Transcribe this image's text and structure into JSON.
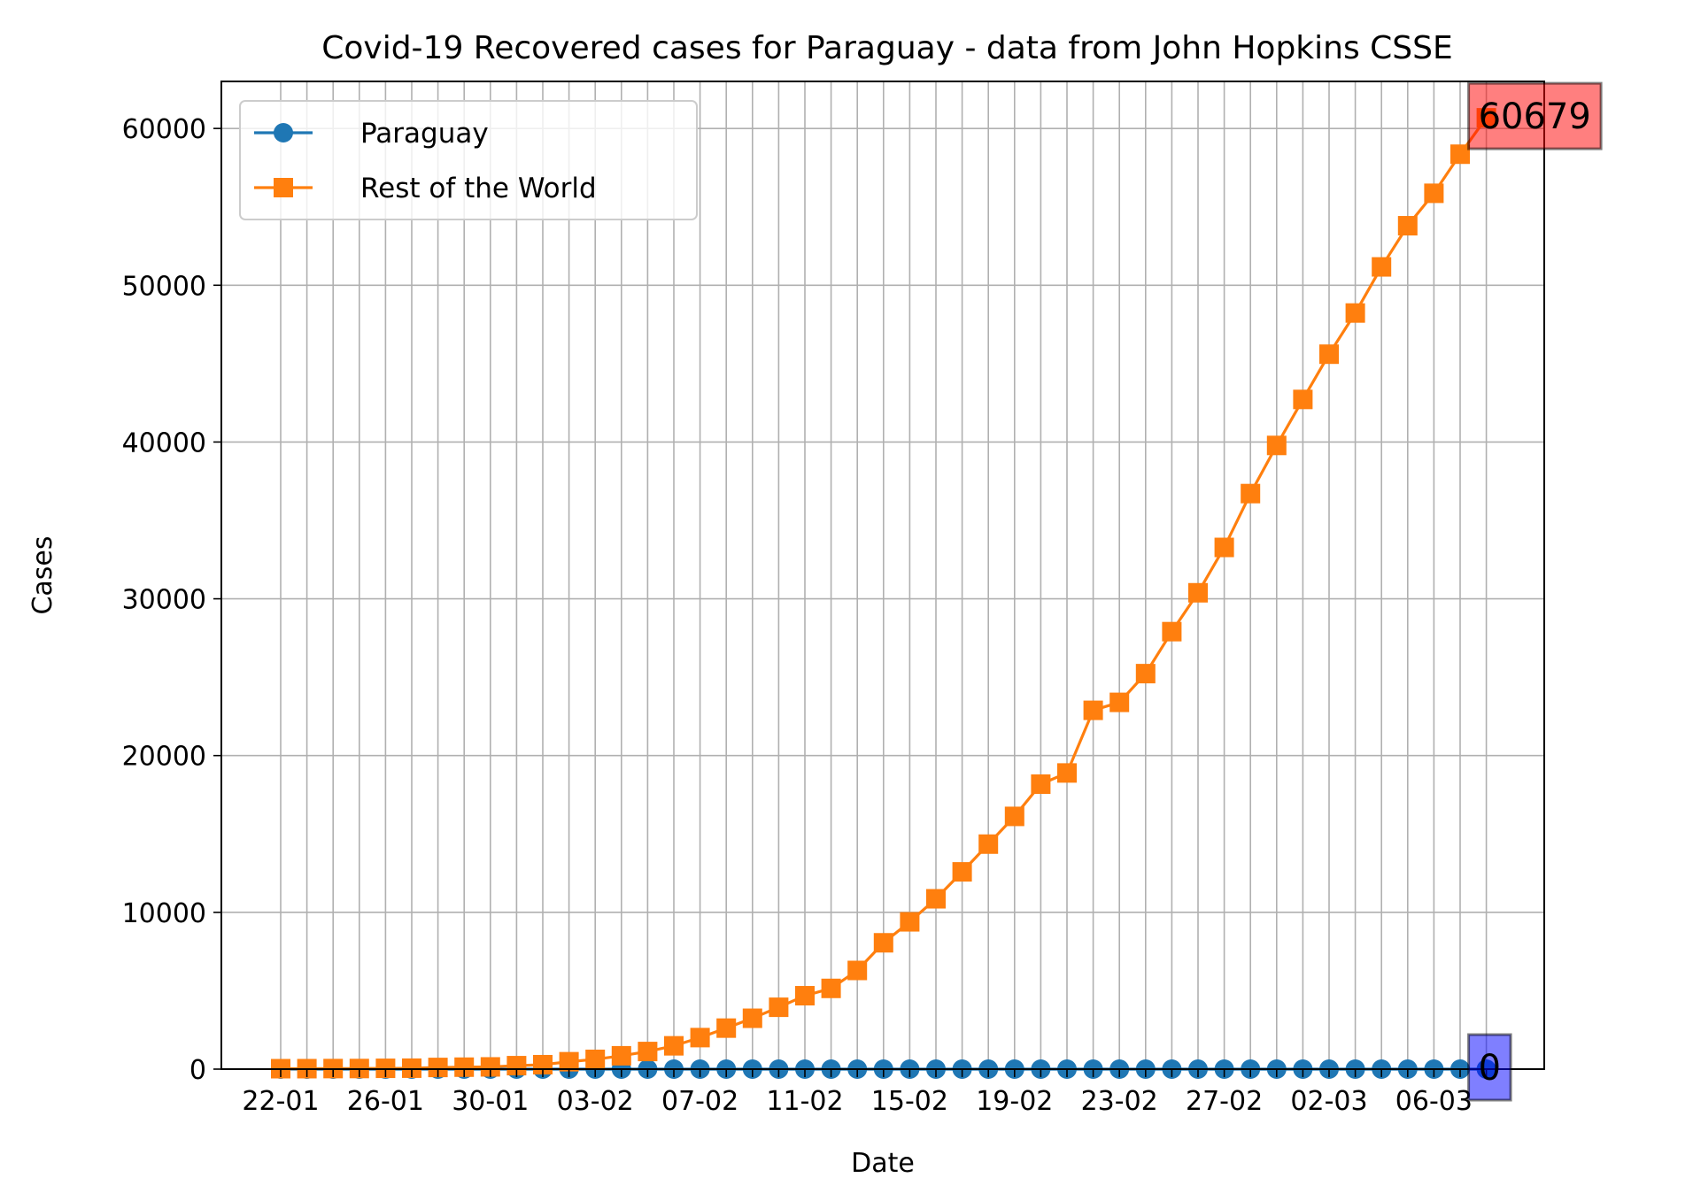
{
  "chart_data": {
    "type": "line",
    "title": "Covid-19 Recovered cases for Paraguay - data from John Hopkins CSSE",
    "xlabel": "Date",
    "ylabel": "Cases",
    "ylim": [
      0,
      63000
    ],
    "yticks": [
      0,
      10000,
      20000,
      30000,
      40000,
      50000,
      60000
    ],
    "x": [
      "22-01",
      "23-01",
      "24-01",
      "25-01",
      "26-01",
      "27-01",
      "28-01",
      "29-01",
      "30-01",
      "31-01",
      "01-02",
      "02-02",
      "03-02",
      "04-02",
      "05-02",
      "06-02",
      "07-02",
      "08-02",
      "09-02",
      "10-02",
      "11-02",
      "12-02",
      "13-02",
      "14-02",
      "15-02",
      "16-02",
      "17-02",
      "18-02",
      "19-02",
      "20-02",
      "21-02",
      "22-02",
      "23-02",
      "24-02",
      "25-02",
      "26-02",
      "27-02",
      "28-02",
      "29-02",
      "01-03",
      "02-03",
      "03-03",
      "04-03",
      "05-03",
      "06-03",
      "07-03",
      "08-03"
    ],
    "xtick_labels": [
      "22-01",
      "26-01",
      "30-01",
      "03-02",
      "07-02",
      "11-02",
      "15-02",
      "19-02",
      "23-02",
      "27-02",
      "02-03",
      "06-03"
    ],
    "grid": true,
    "legend_position": "upper-left",
    "series": [
      {
        "name": "Paraguay",
        "color": "#1f77b4",
        "marker": "circle",
        "values": [
          0,
          0,
          0,
          0,
          0,
          0,
          0,
          0,
          0,
          0,
          0,
          0,
          0,
          0,
          0,
          0,
          0,
          0,
          0,
          0,
          0,
          0,
          0,
          0,
          0,
          0,
          0,
          0,
          0,
          0,
          0,
          0,
          0,
          0,
          0,
          0,
          0,
          0,
          0,
          0,
          0,
          0,
          0,
          0,
          0,
          0,
          0
        ]
      },
      {
        "name": "Rest of the World",
        "color": "#ff7f0e",
        "marker": "square",
        "values": [
          28,
          30,
          36,
          39,
          52,
          61,
          107,
          126,
          143,
          222,
          284,
          472,
          623,
          852,
          1124,
          1487,
          2011,
          2616,
          3244,
          3946,
          4683,
          5150,
          6295,
          8058,
          9395,
          10865,
          12583,
          14352,
          16121,
          18177,
          18890,
          22886,
          23394,
          25227,
          27905,
          30384,
          33277,
          36711,
          39782,
          42716,
          45602,
          48228,
          51170,
          53796,
          55865,
          58358,
          60679
        ]
      }
    ],
    "annotations": [
      {
        "text": "60679",
        "series": "Rest of the World",
        "color": "#ff0000"
      },
      {
        "text": "0",
        "series": "Paraguay",
        "color": "#0000ff"
      }
    ]
  }
}
